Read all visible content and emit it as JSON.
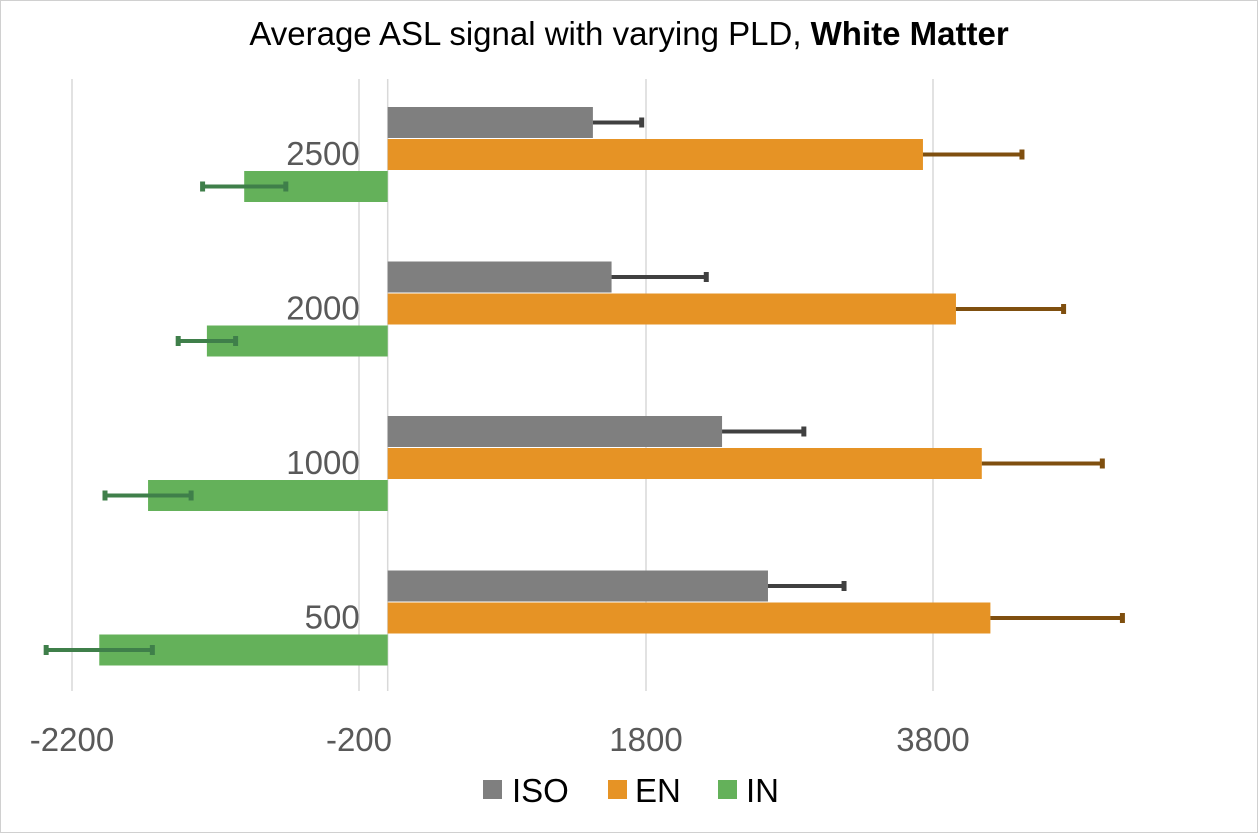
{
  "chart_data": {
    "type": "bar",
    "orientation": "horizontal",
    "title": "Average ASL signal with varying PLD, ",
    "title_bold": "White Matter",
    "categories": [
      "2500",
      "2000",
      "1000",
      "500"
    ],
    "x_ticks": [
      "-2200",
      "-200",
      "1800",
      "3800"
    ],
    "x_tick_values": [
      -2200,
      -200,
      1800,
      3800
    ],
    "xlim": [
      -2200,
      5600
    ],
    "grid": true,
    "legend_position": "bottom",
    "series": [
      {
        "name": "ISO",
        "color": "#7f7f7f",
        "error_color": "#404040",
        "values": [
          1430,
          1560,
          2330,
          2650
        ],
        "errors": [
          340,
          660,
          570,
          530
        ]
      },
      {
        "name": "EN",
        "color": "#e69325",
        "error_color": "#7f4f0f",
        "values": [
          3730,
          3960,
          4140,
          4200
        ],
        "errors": [
          690,
          750,
          840,
          920
        ]
      },
      {
        "name": "IN",
        "color": "#64b15a",
        "error_color": "#3f7f4a",
        "values": [
          -1000,
          -1260,
          -1670,
          -2010
        ],
        "errors": [
          290,
          200,
          300,
          370
        ]
      }
    ]
  }
}
